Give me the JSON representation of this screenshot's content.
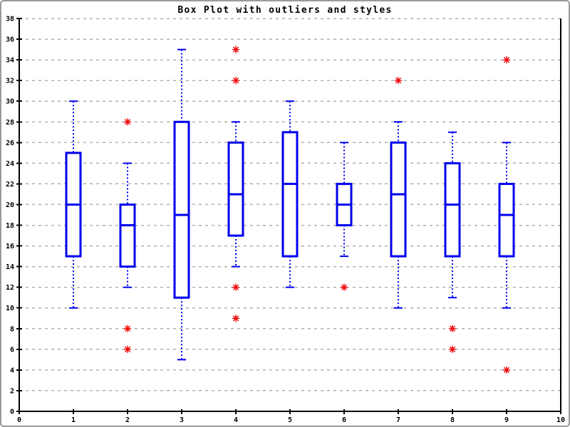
{
  "window": {
    "background": "#ffffff",
    "border_color": "#9a9a9a"
  },
  "chart_data": {
    "type": "boxplot",
    "title": "Box Plot with outliers and styles",
    "xlabel": "",
    "ylabel": "",
    "xlim": [
      0,
      10
    ],
    "ylim": [
      0,
      38
    ],
    "x_ticks": [
      0,
      1,
      2,
      3,
      4,
      5,
      6,
      7,
      8,
      9,
      10
    ],
    "y_ticks": [
      0,
      2,
      4,
      6,
      8,
      10,
      12,
      14,
      16,
      18,
      20,
      22,
      24,
      26,
      28,
      30,
      32,
      34,
      36,
      38
    ],
    "grid": {
      "horizontal": true,
      "vertical": false,
      "style": "dashed"
    },
    "colors": {
      "box_stroke": "#0000ee",
      "box_fill": "#ffffff",
      "outlier": "#ee0000",
      "grid": "#b0b0b0",
      "axis": "#000000"
    },
    "boxes": [
      {
        "x": 1,
        "whisker_low": 10,
        "q1": 15,
        "median": 20,
        "q3": 25,
        "whisker_high": 30,
        "outliers": []
      },
      {
        "x": 2,
        "whisker_low": 12,
        "q1": 14,
        "median": 18,
        "q3": 20,
        "whisker_high": 24,
        "outliers": [
          28,
          8,
          6
        ]
      },
      {
        "x": 3,
        "whisker_low": 5,
        "q1": 11,
        "median": 19,
        "q3": 28,
        "whisker_high": 35,
        "outliers": []
      },
      {
        "x": 4,
        "whisker_low": 14,
        "q1": 17,
        "median": 21,
        "q3": 26,
        "whisker_high": 28,
        "outliers": [
          35,
          32,
          12,
          9
        ]
      },
      {
        "x": 5,
        "whisker_low": 12,
        "q1": 15,
        "median": 22,
        "q3": 27,
        "whisker_high": 30,
        "outliers": []
      },
      {
        "x": 6,
        "whisker_low": 15,
        "q1": 18,
        "median": 20,
        "q3": 22,
        "whisker_high": 26,
        "outliers": [
          12
        ]
      },
      {
        "x": 7,
        "whisker_low": 10,
        "q1": 15,
        "median": 21,
        "q3": 26,
        "whisker_high": 28,
        "outliers": [
          32
        ]
      },
      {
        "x": 8,
        "whisker_low": 11,
        "q1": 15,
        "median": 20,
        "q3": 24,
        "whisker_high": 27,
        "outliers": [
          8,
          6
        ]
      },
      {
        "x": 9,
        "whisker_low": 10,
        "q1": 15,
        "median": 19,
        "q3": 22,
        "whisker_high": 26,
        "outliers": [
          34,
          4
        ]
      }
    ]
  }
}
